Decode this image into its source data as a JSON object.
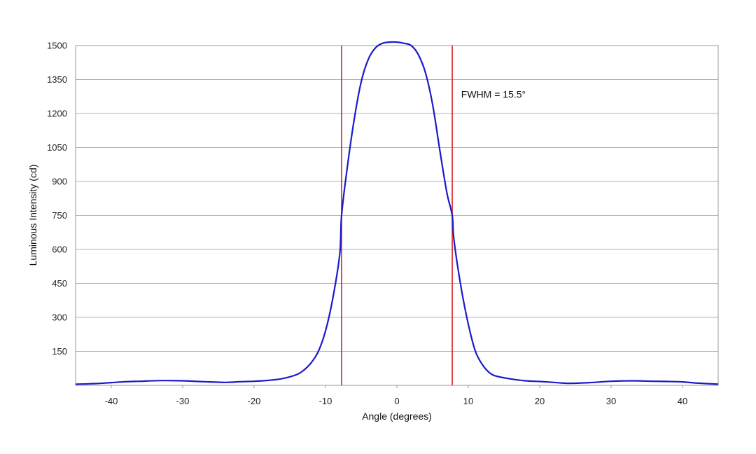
{
  "chart_data": {
    "type": "line",
    "title": "",
    "xlabel": "Angle (degrees)",
    "ylabel": "Luminous Intensity (cd)",
    "xlim": [
      -45,
      45
    ],
    "ylim": [
      0,
      1500
    ],
    "x_ticks": [
      -40,
      -30,
      -20,
      -10,
      0,
      10,
      20,
      30,
      40
    ],
    "y_ticks": [
      150,
      300,
      450,
      600,
      750,
      900,
      1050,
      1200,
      1350,
      1500
    ],
    "grid": "horizontal",
    "legend": "none",
    "series": [
      {
        "color": "#1a1acc",
        "x": [
          -45,
          -42,
          -40,
          -38,
          -36,
          -33,
          -30,
          -27,
          -24,
          -22,
          -20,
          -18,
          -16,
          -14,
          -13,
          -12,
          -11,
          -10,
          -9,
          -8,
          -7.75,
          -7,
          -6,
          -5,
          -4,
          -3,
          -2,
          -1,
          0,
          1,
          2,
          3,
          4,
          5,
          6,
          7,
          7.75,
          8,
          9,
          10,
          11,
          12,
          13,
          14,
          16,
          18,
          20,
          22,
          24,
          27,
          30,
          33,
          36,
          38,
          40,
          42,
          45
        ],
        "y": [
          5,
          8,
          12,
          16,
          18,
          21,
          20,
          16,
          13,
          16,
          18,
          22,
          30,
          48,
          68,
          100,
          150,
          240,
          380,
          580,
          750,
          950,
          1170,
          1340,
          1440,
          1490,
          1510,
          1515,
          1515,
          1510,
          1500,
          1460,
          1380,
          1240,
          1040,
          850,
          750,
          640,
          430,
          270,
          150,
          90,
          55,
          40,
          28,
          20,
          17,
          13,
          9,
          12,
          18,
          20,
          18,
          17,
          15,
          10,
          5
        ]
      }
    ],
    "vertical_lines": [
      {
        "x": -7.75,
        "color": "#dd2222"
      },
      {
        "x": 7.75,
        "color": "#dd2222"
      }
    ],
    "annotations": [
      {
        "text": "FWHM = 15.5°",
        "x": 9,
        "y": 1270
      }
    ]
  }
}
